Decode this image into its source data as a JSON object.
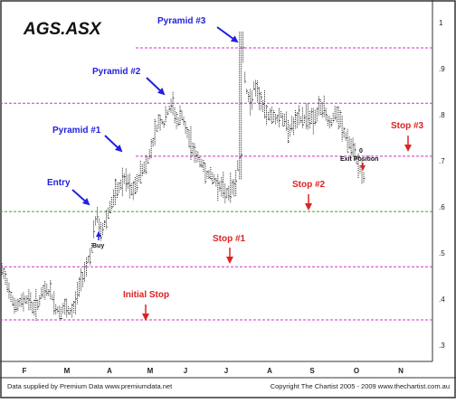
{
  "colors": {
    "frame": "#333333",
    "bars": "#111111",
    "stop_line": "#cc33cc",
    "entry_line": "#33aa33",
    "blue_annotation": "#2222dd",
    "red_annotation": "#dd2222"
  },
  "chart_data": {
    "type": "ohlc",
    "title": "AGS.ASX",
    "xlabel": "",
    "ylabel": "",
    "months": [
      "F",
      "M",
      "A",
      "M",
      "J",
      "J",
      "A",
      "S",
      "O",
      "N"
    ],
    "y_ticks": [
      ".3",
      ".4",
      ".5",
      ".6",
      ".7",
      ".8",
      ".9",
      "1"
    ],
    "ylim": [
      0.3,
      1.0
    ],
    "grid": false,
    "legend": "none",
    "horizontal_lines": [
      {
        "name": "initial-stop-line",
        "value": 0.355,
        "style": "dashed",
        "color": "magenta"
      },
      {
        "name": "stop-1-line",
        "value": 0.47,
        "style": "dashed",
        "color": "magenta"
      },
      {
        "name": "entry-line",
        "value": 0.59,
        "style": "dashed",
        "color": "green"
      },
      {
        "name": "stop-3-line",
        "value": 0.71,
        "style": "dashed",
        "color": "magenta"
      },
      {
        "name": "stop-2-line",
        "value": 0.825,
        "style": "dashed",
        "color": "magenta"
      },
      {
        "name": "pyramid-3-line",
        "value": 0.945,
        "style": "dashed",
        "color": "magenta"
      }
    ],
    "price_path": [
      [
        0,
        0.46
      ],
      [
        5,
        0.44
      ],
      [
        10,
        0.41
      ],
      [
        15,
        0.38
      ],
      [
        20,
        0.39
      ],
      [
        25,
        0.4
      ],
      [
        30,
        0.4
      ],
      [
        35,
        0.38
      ],
      [
        40,
        0.39
      ],
      [
        45,
        0.41
      ],
      [
        50,
        0.42
      ],
      [
        55,
        0.41
      ],
      [
        60,
        0.38
      ],
      [
        65,
        0.37
      ],
      [
        70,
        0.38
      ],
      [
        75,
        0.37
      ],
      [
        80,
        0.38
      ],
      [
        85,
        0.42
      ],
      [
        90,
        0.45
      ],
      [
        95,
        0.48
      ],
      [
        100,
        0.51
      ],
      [
        103,
        0.56
      ],
      [
        106,
        0.58
      ],
      [
        110,
        0.54
      ],
      [
        115,
        0.57
      ],
      [
        120,
        0.6
      ],
      [
        125,
        0.62
      ],
      [
        130,
        0.64
      ],
      [
        135,
        0.66
      ],
      [
        140,
        0.65
      ],
      [
        145,
        0.63
      ],
      [
        150,
        0.65
      ],
      [
        155,
        0.68
      ],
      [
        160,
        0.69
      ],
      [
        165,
        0.72
      ],
      [
        170,
        0.76
      ],
      [
        175,
        0.79
      ],
      [
        180,
        0.78
      ],
      [
        185,
        0.81
      ],
      [
        190,
        0.82
      ],
      [
        195,
        0.78
      ],
      [
        200,
        0.8
      ],
      [
        205,
        0.76
      ],
      [
        210,
        0.74
      ],
      [
        215,
        0.71
      ],
      [
        220,
        0.7
      ],
      [
        225,
        0.68
      ],
      [
        230,
        0.67
      ],
      [
        235,
        0.66
      ],
      [
        240,
        0.65
      ],
      [
        245,
        0.64
      ],
      [
        250,
        0.63
      ],
      [
        255,
        0.64
      ],
      [
        260,
        0.65
      ],
      [
        265,
        0.75
      ],
      [
        268,
        0.92
      ],
      [
        272,
        0.85
      ],
      [
        276,
        0.82
      ],
      [
        280,
        0.86
      ],
      [
        285,
        0.84
      ],
      [
        290,
        0.82
      ],
      [
        295,
        0.8
      ],
      [
        300,
        0.8
      ],
      [
        305,
        0.79
      ],
      [
        310,
        0.8
      ],
      [
        315,
        0.78
      ],
      [
        320,
        0.77
      ],
      [
        325,
        0.78
      ],
      [
        330,
        0.79
      ],
      [
        335,
        0.79
      ],
      [
        340,
        0.8
      ],
      [
        345,
        0.79
      ],
      [
        350,
        0.8
      ],
      [
        355,
        0.82
      ],
      [
        360,
        0.8
      ],
      [
        365,
        0.78
      ],
      [
        370,
        0.8
      ],
      [
        375,
        0.79
      ],
      [
        380,
        0.76
      ],
      [
        385,
        0.74
      ],
      [
        390,
        0.72
      ],
      [
        395,
        0.7
      ],
      [
        400,
        0.67
      ],
      [
        403,
        0.66
      ]
    ],
    "annotations": [
      {
        "label": "Pyramid #3",
        "color": "blue"
      },
      {
        "label": "Pyramid #2",
        "color": "blue"
      },
      {
        "label": "Pyramid #1",
        "color": "blue"
      },
      {
        "label": "Entry",
        "color": "blue"
      },
      {
        "label": "Buy",
        "color": "black"
      },
      {
        "label": "Stop #3",
        "color": "red"
      },
      {
        "label": "Stop #2",
        "color": "red"
      },
      {
        "label": "Stop #1",
        "color": "red"
      },
      {
        "label": "Initial Stop",
        "color": "red"
      },
      {
        "label": "0",
        "color": "black"
      },
      {
        "label": "Exit Position",
        "color": "black"
      }
    ],
    "footer_left": "Data supplied by Premium Data www.premiumdata.net",
    "footer_right": "Copyright The Chartist 2005 - 2009  www.thechartist.com.au"
  }
}
